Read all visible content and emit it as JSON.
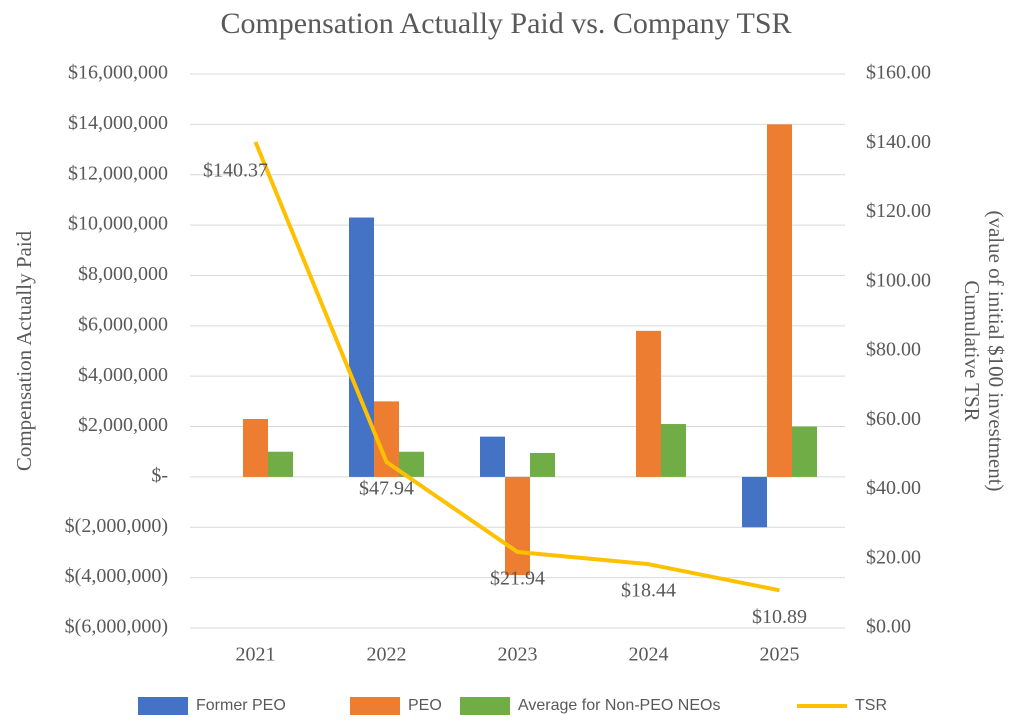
{
  "chart_data": {
    "type": "bar",
    "title": "Compensation Actually Paid vs. Company TSR",
    "y_label": "Compensation Actually Paid",
    "y2_label": [
      "Cumulative TSR",
      "(value of initial $100 investment)"
    ],
    "categories": [
      "2021",
      "2022",
      "2023",
      "2024",
      "2025"
    ],
    "series": [
      {
        "name": "Former PEO",
        "color": "#4472c4",
        "values": [
          null,
          10300000,
          1600000,
          null,
          -2000000
        ]
      },
      {
        "name": "PEO",
        "color": "#ed7d31",
        "values": [
          2300000,
          3000000,
          -3900000,
          5800000,
          14000000
        ]
      },
      {
        "name": "Average for Non-PEO NEOs",
        "color": "#70ad47",
        "values": [
          1000000,
          1000000,
          950000,
          2100000,
          2000000
        ]
      },
      {
        "name": "TSR",
        "color": "#ffc000",
        "type": "line",
        "axis": "y2",
        "values": [
          140.37,
          47.94,
          21.94,
          18.44,
          10.89
        ],
        "value_labels": [
          "$140.37",
          "$47.94",
          "$21.94",
          "$18.44",
          "$10.89"
        ]
      }
    ],
    "ylim": [
      -6000000,
      16000000
    ],
    "yticks": [
      {
        "value": 16000000,
        "label": "$16,000,000"
      },
      {
        "value": 14000000,
        "label": "$14,000,000"
      },
      {
        "value": 12000000,
        "label": "$12,000,000"
      },
      {
        "value": 10000000,
        "label": "$10,000,000"
      },
      {
        "value": 8000000,
        "label": "$8,000,000"
      },
      {
        "value": 6000000,
        "label": "$6,000,000"
      },
      {
        "value": 4000000,
        "label": "$4,000,000"
      },
      {
        "value": 2000000,
        "label": "$2,000,000"
      },
      {
        "value": 0,
        "label": "$-"
      },
      {
        "value": -2000000,
        "label": "$(2,000,000)"
      },
      {
        "value": -4000000,
        "label": "$(4,000,000)"
      },
      {
        "value": -6000000,
        "label": "$(6,000,000)"
      }
    ],
    "y2lim": [
      0,
      160
    ],
    "y2ticks": [
      {
        "value": 160,
        "label": "$160.00"
      },
      {
        "value": 140,
        "label": "$140.00"
      },
      {
        "value": 120,
        "label": "$120.00"
      },
      {
        "value": 100,
        "label": "$100.00"
      },
      {
        "value": 80,
        "label": "$80.00"
      },
      {
        "value": 60,
        "label": "$60.00"
      },
      {
        "value": 40,
        "label": "$40.00"
      },
      {
        "value": 20,
        "label": "$20.00"
      },
      {
        "value": 0,
        "label": "$0.00"
      }
    ],
    "grid": true,
    "legend": "bottom"
  }
}
